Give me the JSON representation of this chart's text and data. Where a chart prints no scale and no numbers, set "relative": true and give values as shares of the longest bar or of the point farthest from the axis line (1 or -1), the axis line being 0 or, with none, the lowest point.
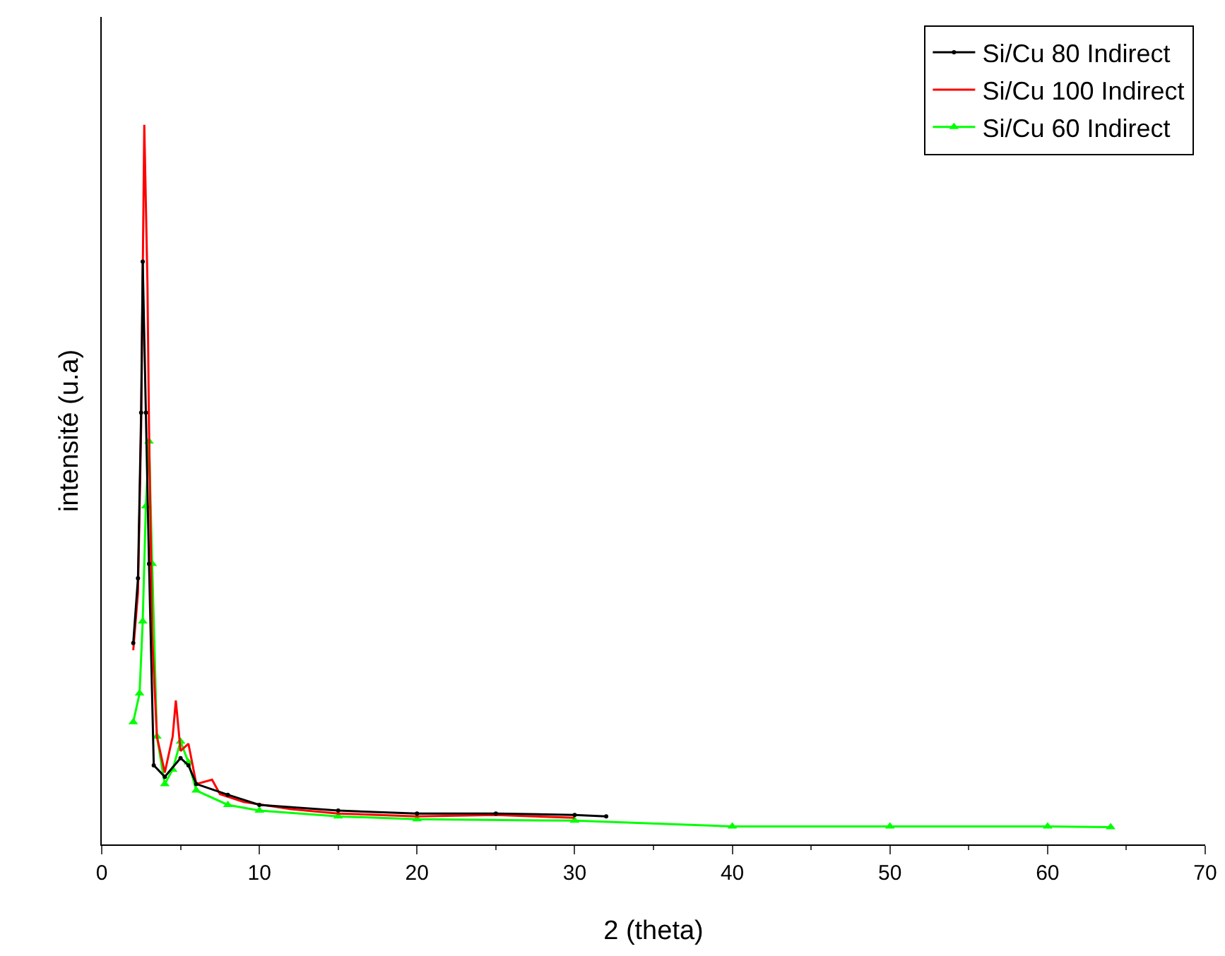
{
  "chart_data": {
    "type": "line",
    "xlabel": "2 (theta)",
    "ylabel": "intensité (u.a)",
    "relative": true,
    "xlim": [
      0,
      70
    ],
    "xticks": [
      0,
      10,
      20,
      30,
      40,
      50,
      60,
      70
    ],
    "tick_labels": "x",
    "grid": false,
    "legend": "top right",
    "series": [
      {
        "name": "Si/Cu 80 Indirect",
        "color": "#000000",
        "marker": "circle",
        "x": [
          2.0,
          2.3,
          2.5,
          2.6,
          2.8,
          3.0,
          3.3,
          4,
          5,
          5.5,
          6,
          8,
          10,
          15,
          20,
          25,
          30,
          32
        ],
        "values": [
          0.28,
          0.37,
          0.6,
          0.81,
          0.6,
          0.39,
          0.11,
          0.094,
          0.12,
          0.11,
          0.084,
          0.069,
          0.055,
          0.047,
          0.043,
          0.043,
          0.041,
          0.039
        ]
      },
      {
        "name": "Si/Cu 100 Indirect",
        "color": "#ff0000",
        "marker": "none",
        "x": [
          2.0,
          2.3,
          2.5,
          2.7,
          2.9,
          3.0,
          3.2,
          3.5,
          4.0,
          4.5,
          4.7,
          5.0,
          5.5,
          6,
          7,
          7.5,
          9,
          12,
          15,
          20,
          25,
          30
        ],
        "values": [
          0.27,
          0.35,
          0.58,
          1.0,
          0.78,
          0.58,
          0.29,
          0.15,
          0.1,
          0.15,
          0.2,
          0.13,
          0.14,
          0.084,
          0.09,
          0.07,
          0.059,
          0.049,
          0.043,
          0.039,
          0.041,
          0.037
        ]
      },
      {
        "name": "Si/Cu 60 Indirect",
        "color": "#00ff00",
        "marker": "triangle",
        "x": [
          2.0,
          2.4,
          2.6,
          2.8,
          3.0,
          3.2,
          3.5,
          4,
          4.5,
          5,
          5.5,
          6,
          8,
          10,
          15,
          20,
          30,
          40,
          50,
          60,
          64
        ],
        "values": [
          0.17,
          0.21,
          0.31,
          0.47,
          0.56,
          0.39,
          0.15,
          0.084,
          0.104,
          0.143,
          0.114,
          0.075,
          0.055,
          0.047,
          0.039,
          0.035,
          0.033,
          0.025,
          0.025,
          0.025,
          0.024
        ]
      }
    ]
  }
}
